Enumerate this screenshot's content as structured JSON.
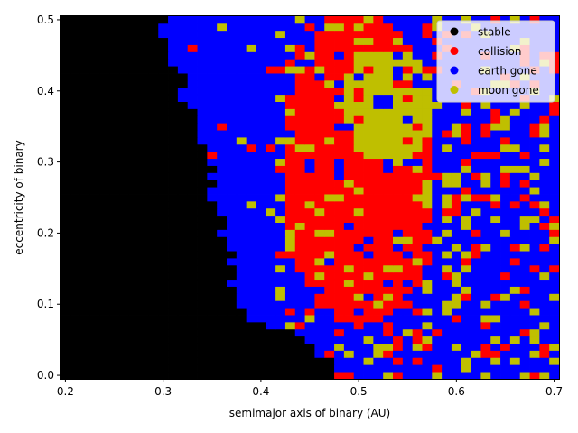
{
  "chart_data": {
    "type": "heatmap",
    "title": "",
    "xlabel": "semimajor axis of binary (AU)",
    "ylabel": "eccentricity of binary",
    "xlim": [
      0.195,
      0.705
    ],
    "ylim": [
      -0.005,
      0.505
    ],
    "x_ticks": [
      0.2,
      0.3,
      0.4,
      0.5,
      0.6,
      0.7
    ],
    "x_tick_labels": [
      "0.2",
      "0.3",
      "0.4",
      "0.5",
      "0.6",
      "0.7"
    ],
    "y_ticks": [
      0.0,
      0.1,
      0.2,
      0.3,
      0.4,
      0.5
    ],
    "y_tick_labels": [
      "0.0",
      "0.1",
      "0.2",
      "0.3",
      "0.4",
      "0.5"
    ],
    "grid": false,
    "legend_position": "top-right",
    "categories": [
      {
        "name": "stable",
        "color": "#000000"
      },
      {
        "name": "collision",
        "color": "#ff0000"
      },
      {
        "name": "earth gone",
        "color": "#0000ff"
      },
      {
        "name": "moon gone",
        "color": "#bfbf00"
      }
    ],
    "x_bins": [
      0.195,
      0.705,
      51
    ],
    "y_bins": [
      -0.005,
      0.505,
      51
    ],
    "black_boundary": [
      [
        0.0,
        0.475
      ],
      [
        0.02,
        0.465
      ],
      [
        0.04,
        0.445
      ],
      [
        0.06,
        0.425
      ],
      [
        0.08,
        0.385
      ],
      [
        0.1,
        0.375
      ],
      [
        0.12,
        0.375
      ],
      [
        0.14,
        0.365
      ],
      [
        0.16,
        0.365
      ],
      [
        0.18,
        0.365
      ],
      [
        0.2,
        0.355
      ],
      [
        0.22,
        0.355
      ],
      [
        0.24,
        0.345
      ],
      [
        0.26,
        0.345
      ],
      [
        0.28,
        0.345
      ],
      [
        0.3,
        0.345
      ],
      [
        0.32,
        0.335
      ],
      [
        0.34,
        0.335
      ],
      [
        0.36,
        0.325
      ],
      [
        0.38,
        0.325
      ],
      [
        0.4,
        0.315
      ],
      [
        0.42,
        0.315
      ],
      [
        0.44,
        0.305
      ],
      [
        0.46,
        0.305
      ],
      [
        0.48,
        0.295
      ],
      [
        0.5,
        0.295
      ]
    ],
    "collision_region": {
      "center": [
        0.5,
        0.29
      ],
      "semi_axes": [
        0.08,
        0.22
      ]
    },
    "moon_gone_region": {
      "center": [
        0.53,
        0.38
      ],
      "semi_axes": [
        0.05,
        0.08
      ]
    }
  }
}
